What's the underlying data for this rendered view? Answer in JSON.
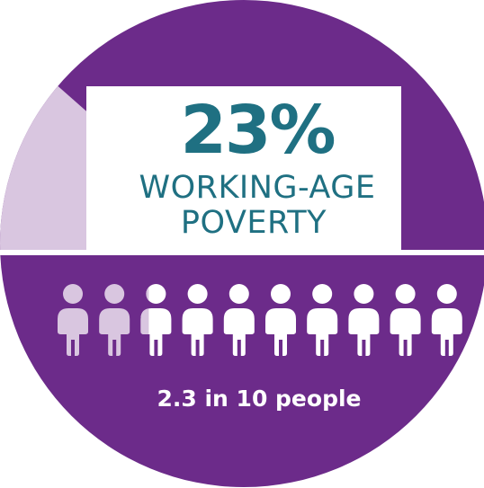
{
  "headline": {
    "value": "23%",
    "line1": "WORKING-AGE",
    "line2": "POVERTY"
  },
  "caption": "2.3 in 10 people",
  "chart_data": {
    "type": "pictogram",
    "percentage": 23,
    "people_affected": 2.3,
    "people_total": 10,
    "title": "23% WORKING-AGE POVERTY",
    "caption": "2.3 in 10 people"
  },
  "colors": {
    "dark_purple": "#6c2b8a",
    "light_purple": "#d9c6e0",
    "teal": "#1f7082",
    "white": "#ffffff"
  }
}
